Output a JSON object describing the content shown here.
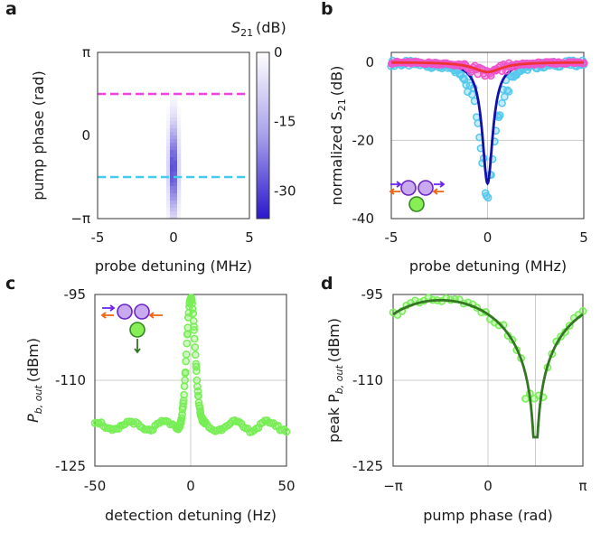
{
  "chart_data": [
    {
      "panel": "a",
      "type": "heatmap",
      "xlabel": "probe detuning (MHz)",
      "ylabel": "pump phase (rad)",
      "x_ticks": [
        "-5",
        "0",
        "5"
      ],
      "y_ticks": [
        "−π",
        "0",
        "π"
      ],
      "xlim": [
        -5,
        5
      ],
      "ylim": [
        -3.1416,
        3.1416
      ],
      "colorbar": {
        "label_main": "S",
        "label_sub": "21",
        "label_unit": "(dB)",
        "ticks": [
          "0",
          "-15",
          "-30"
        ],
        "tick_values": [
          0,
          -15,
          -30
        ],
        "range": [
          -36,
          0
        ]
      },
      "colormap": [
        "#ffffff",
        "#3322cc"
      ],
      "cuts": [
        {
          "name": "magenta cut",
          "phase": 1.57,
          "color": "#ee44dd"
        },
        {
          "name": "cyan cut",
          "phase": -1.57,
          "color": "#44ccee"
        }
      ],
      "dip": {
        "center_detuning": 0.0,
        "center_phase": -1.25,
        "depth_db": -33,
        "width_detuning": 0.2,
        "width_phase": 1.1
      }
    },
    {
      "panel": "b",
      "type": "line",
      "xlabel": "probe detuning (MHz)",
      "ylabel_main": "normalized S",
      "ylabel_sub": "21",
      "ylabel_unit": "(dB)",
      "x_ticks": [
        "-5",
        "0",
        "5"
      ],
      "y_ticks": [
        "0",
        "-20",
        "-40"
      ],
      "xlim": [
        -5,
        5
      ],
      "ylim": [
        -40,
        2.5
      ],
      "series": [
        {
          "name": "cyan data",
          "kind": "scatter",
          "color": "#55c8ee",
          "width": 0.45,
          "depth": -32
        },
        {
          "name": "dark blue fit",
          "kind": "line",
          "color": "#1111aa",
          "width": 0.33,
          "depth": -31
        },
        {
          "name": "magenta data",
          "kind": "scatter",
          "color": "#ee55cc",
          "width": 0.9,
          "depth": -3
        },
        {
          "name": "red fit",
          "kind": "line",
          "color": "#ee3333",
          "width": 0.9,
          "depth": -2.5
        }
      ]
    },
    {
      "panel": "c",
      "type": "scatter",
      "xlabel": "detection detuning (Hz)",
      "ylabel_main": "P",
      "ylabel_sub": "b, out",
      "ylabel_unit": "(dBm)",
      "x_ticks": [
        "-50",
        "0",
        "50"
      ],
      "y_ticks": [
        "-95",
        "-110",
        "-125"
      ],
      "xlim": [
        -50,
        50
      ],
      "ylim": [
        -125,
        -95
      ],
      "baseline_dbm": -118,
      "peak_dbm": -95.5,
      "peak_width_hz": 2.2,
      "marker_color": "#77ee55"
    },
    {
      "panel": "d",
      "type": "scatter",
      "xlabel": "pump phase (rad)",
      "ylabel_main": "peak P",
      "ylabel_sub": "b, out",
      "ylabel_unit": "(dBm)",
      "x_ticks": [
        "−π",
        "0",
        "π"
      ],
      "y_ticks": [
        "-95",
        "-110",
        "-125"
      ],
      "xlim": [
        -3.1416,
        3.1416
      ],
      "ylim": [
        -125,
        -95
      ],
      "max_phase": -1.57,
      "max_dbm": -96,
      "dip_phase": 1.57,
      "dip_dbm": -120,
      "fit_color": "#337722",
      "marker_color": "#77ee55"
    }
  ],
  "panel_labels": [
    "a",
    "b",
    "c",
    "d"
  ]
}
